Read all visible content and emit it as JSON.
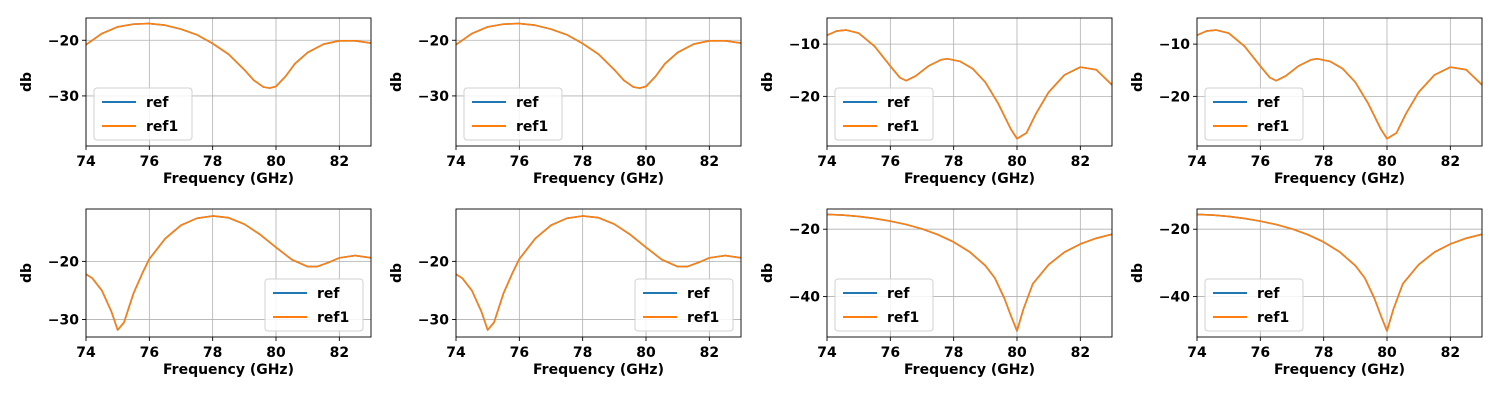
{
  "colors": {
    "ref": "#1f77b4",
    "ref1": "#ff7f0e"
  },
  "chart_data": [
    {
      "type": "line",
      "xlabel": "Frequency (GHz)",
      "ylabel": "db",
      "xlim": [
        74,
        83
      ],
      "ylim": [
        -39,
        -16
      ],
      "xticks": [
        74,
        76,
        78,
        80,
        82
      ],
      "yticks": [
        -30,
        -20
      ],
      "grid": true,
      "legend": "bottom-left",
      "x": [
        74,
        74.5,
        75,
        75.5,
        76,
        76.5,
        77,
        77.5,
        78,
        78.5,
        79,
        79.3,
        79.6,
        79.8,
        80,
        80.3,
        80.6,
        81,
        81.5,
        82,
        82.5,
        83
      ],
      "series": [
        {
          "name": "ref",
          "values": [
            -20.8,
            -18.8,
            -17.6,
            -17.1,
            -17,
            -17.3,
            -18,
            -19,
            -20.6,
            -22.5,
            -25.3,
            -27.2,
            -28.4,
            -28.6,
            -28.3,
            -26.5,
            -24.2,
            -22.2,
            -20.7,
            -20.1,
            -20.1,
            -20.5
          ]
        },
        {
          "name": "ref1",
          "values": [
            -20.8,
            -18.8,
            -17.6,
            -17.1,
            -17,
            -17.3,
            -18,
            -19,
            -20.6,
            -22.5,
            -25.3,
            -27.2,
            -28.4,
            -28.6,
            -28.3,
            -26.5,
            -24.2,
            -22.2,
            -20.7,
            -20.1,
            -20.1,
            -20.5
          ]
        }
      ]
    },
    {
      "type": "line",
      "xlabel": "Frequency (GHz)",
      "ylabel": "db",
      "xlim": [
        74,
        83
      ],
      "ylim": [
        -39,
        -16
      ],
      "xticks": [
        74,
        76,
        78,
        80,
        82
      ],
      "yticks": [
        -30,
        -20
      ],
      "grid": true,
      "legend": "bottom-left",
      "x": [
        74,
        74.5,
        75,
        75.5,
        76,
        76.5,
        77,
        77.5,
        78,
        78.5,
        79,
        79.3,
        79.6,
        79.8,
        80,
        80.3,
        80.6,
        81,
        81.5,
        82,
        82.5,
        83
      ],
      "series": [
        {
          "name": "ref",
          "values": [
            -20.8,
            -18.8,
            -17.6,
            -17.1,
            -17,
            -17.3,
            -18,
            -19,
            -20.6,
            -22.5,
            -25.3,
            -27.2,
            -28.4,
            -28.6,
            -28.3,
            -26.5,
            -24.2,
            -22.2,
            -20.7,
            -20.1,
            -20.1,
            -20.5
          ]
        },
        {
          "name": "ref1",
          "values": [
            -20.8,
            -18.8,
            -17.6,
            -17.1,
            -17,
            -17.3,
            -18,
            -19,
            -20.6,
            -22.5,
            -25.3,
            -27.2,
            -28.4,
            -28.6,
            -28.3,
            -26.5,
            -24.2,
            -22.2,
            -20.7,
            -20.1,
            -20.1,
            -20.5
          ]
        }
      ]
    },
    {
      "type": "line",
      "xlabel": "Frequency (GHz)",
      "ylabel": "db",
      "xlim": [
        74,
        83
      ],
      "ylim": [
        -29.5,
        -5
      ],
      "xticks": [
        74,
        76,
        78,
        80,
        82
      ],
      "yticks": [
        -20,
        -10
      ],
      "grid": true,
      "legend": "bottom-left",
      "x": [
        74,
        74.3,
        74.6,
        75,
        75.5,
        76,
        76.3,
        76.5,
        76.8,
        77.2,
        77.6,
        77.8,
        78.2,
        78.6,
        79,
        79.4,
        79.8,
        80,
        80.3,
        80.6,
        81,
        81.5,
        82,
        82.5,
        83
      ],
      "series": [
        {
          "name": "ref",
          "values": [
            -8.3,
            -7.5,
            -7.3,
            -7.9,
            -10.4,
            -14.2,
            -16.4,
            -17,
            -16.1,
            -14.2,
            -13,
            -12.8,
            -13.3,
            -14.7,
            -17.3,
            -21.3,
            -26.2,
            -28.1,
            -27,
            -23.3,
            -19.2,
            -15.9,
            -14.4,
            -14.9,
            -17.8
          ]
        },
        {
          "name": "ref1",
          "values": [
            -8.3,
            -7.5,
            -7.3,
            -7.9,
            -10.4,
            -14.2,
            -16.4,
            -17,
            -16.1,
            -14.2,
            -13,
            -12.8,
            -13.3,
            -14.7,
            -17.3,
            -21.3,
            -26.2,
            -28.1,
            -27,
            -23.3,
            -19.2,
            -15.9,
            -14.4,
            -14.9,
            -17.8
          ]
        }
      ]
    },
    {
      "type": "line",
      "xlabel": "Frequency (GHz)",
      "ylabel": "db",
      "xlim": [
        74,
        83
      ],
      "ylim": [
        -29.5,
        -5
      ],
      "xticks": [
        74,
        76,
        78,
        80,
        82
      ],
      "yticks": [
        -20,
        -10
      ],
      "grid": true,
      "legend": "bottom-left",
      "x": [
        74,
        74.3,
        74.6,
        75,
        75.5,
        76,
        76.3,
        76.5,
        76.8,
        77.2,
        77.6,
        77.8,
        78.2,
        78.6,
        79,
        79.4,
        79.8,
        80,
        80.3,
        80.6,
        81,
        81.5,
        82,
        82.5,
        83
      ],
      "series": [
        {
          "name": "ref",
          "values": [
            -8.3,
            -7.5,
            -7.3,
            -7.9,
            -10.4,
            -14.2,
            -16.4,
            -17,
            -16.1,
            -14.2,
            -13,
            -12.8,
            -13.3,
            -14.7,
            -17.3,
            -21.3,
            -26.2,
            -28.1,
            -27,
            -23.3,
            -19.2,
            -15.9,
            -14.4,
            -14.9,
            -17.8
          ]
        },
        {
          "name": "ref1",
          "values": [
            -8.3,
            -7.5,
            -7.3,
            -7.9,
            -10.4,
            -14.2,
            -16.4,
            -17,
            -16.1,
            -14.2,
            -13,
            -12.8,
            -13.3,
            -14.7,
            -17.3,
            -21.3,
            -26.2,
            -28.1,
            -27,
            -23.3,
            -19.2,
            -15.9,
            -14.4,
            -14.9,
            -17.8
          ]
        }
      ]
    },
    {
      "type": "line",
      "xlabel": "Frequency (GHz)",
      "ylabel": "db",
      "xlim": [
        74,
        83
      ],
      "ylim": [
        -33,
        -11
      ],
      "xticks": [
        74,
        76,
        78,
        80,
        82
      ],
      "yticks": [
        -30,
        -20
      ],
      "grid": true,
      "legend": "bottom-right",
      "x": [
        74,
        74.2,
        74.5,
        74.8,
        75,
        75.2,
        75.5,
        75.8,
        76,
        76.5,
        77,
        77.5,
        78,
        78.5,
        79,
        79.5,
        80,
        80.5,
        81,
        81.3,
        81.7,
        82,
        82.5,
        83
      ],
      "series": [
        {
          "name": "ref",
          "values": [
            -22.2,
            -22.9,
            -25,
            -28.6,
            -31.8,
            -30.5,
            -25.5,
            -21.8,
            -19.6,
            -16.1,
            -13.8,
            -12.6,
            -12.2,
            -12.5,
            -13.6,
            -15.4,
            -17.6,
            -19.7,
            -20.9,
            -20.9,
            -20.1,
            -19.4,
            -19.0,
            -19.4
          ]
        },
        {
          "name": "ref1",
          "values": [
            -22.2,
            -22.9,
            -25,
            -28.6,
            -31.8,
            -30.5,
            -25.5,
            -21.8,
            -19.6,
            -16.1,
            -13.8,
            -12.6,
            -12.2,
            -12.5,
            -13.6,
            -15.4,
            -17.6,
            -19.7,
            -20.9,
            -20.9,
            -20.1,
            -19.4,
            -19.0,
            -19.4
          ]
        }
      ]
    },
    {
      "type": "line",
      "xlabel": "Frequency (GHz)",
      "ylabel": "db",
      "xlim": [
        74,
        83
      ],
      "ylim": [
        -33,
        -11
      ],
      "xticks": [
        74,
        76,
        78,
        80,
        82
      ],
      "yticks": [
        -30,
        -20
      ],
      "grid": true,
      "legend": "bottom-right",
      "x": [
        74,
        74.2,
        74.5,
        74.8,
        75,
        75.2,
        75.5,
        75.8,
        76,
        76.5,
        77,
        77.5,
        78,
        78.5,
        79,
        79.5,
        80,
        80.5,
        81,
        81.3,
        81.7,
        82,
        82.5,
        83
      ],
      "series": [
        {
          "name": "ref",
          "values": [
            -22.2,
            -22.9,
            -25,
            -28.6,
            -31.8,
            -30.5,
            -25.5,
            -21.8,
            -19.6,
            -16.1,
            -13.8,
            -12.6,
            -12.2,
            -12.5,
            -13.6,
            -15.4,
            -17.6,
            -19.7,
            -20.9,
            -20.9,
            -20.1,
            -19.4,
            -19.0,
            -19.4
          ]
        },
        {
          "name": "ref1",
          "values": [
            -22.2,
            -22.9,
            -25,
            -28.6,
            -31.8,
            -30.5,
            -25.5,
            -21.8,
            -19.6,
            -16.1,
            -13.8,
            -12.6,
            -12.2,
            -12.5,
            -13.6,
            -15.4,
            -17.6,
            -19.7,
            -20.9,
            -20.9,
            -20.1,
            -19.4,
            -19.0,
            -19.4
          ]
        }
      ]
    },
    {
      "type": "line",
      "xlabel": "Frequency (GHz)",
      "ylabel": "db",
      "xlim": [
        74,
        83
      ],
      "ylim": [
        -52,
        -14
      ],
      "xticks": [
        74,
        76,
        78,
        80,
        82
      ],
      "yticks": [
        -40,
        -20
      ],
      "grid": true,
      "legend": "bottom-left",
      "x": [
        74,
        74.5,
        75,
        75.5,
        76,
        76.5,
        77,
        77.5,
        78,
        78.5,
        79,
        79.3,
        79.6,
        79.8,
        80,
        80.2,
        80.5,
        81,
        81.5,
        82,
        82.5,
        83
      ],
      "series": [
        {
          "name": "ref",
          "values": [
            -15.6,
            -15.8,
            -16.2,
            -16.8,
            -17.6,
            -18.6,
            -19.9,
            -21.6,
            -23.8,
            -26.7,
            -30.8,
            -34.5,
            -40.5,
            -45.5,
            -50.2,
            -43.8,
            -36.2,
            -30.5,
            -26.8,
            -24.4,
            -22.7,
            -21.5
          ]
        },
        {
          "name": "ref1",
          "values": [
            -15.6,
            -15.8,
            -16.2,
            -16.8,
            -17.6,
            -18.6,
            -19.9,
            -21.6,
            -23.8,
            -26.7,
            -30.8,
            -34.5,
            -40.5,
            -45.5,
            -50.2,
            -43.8,
            -36.2,
            -30.5,
            -26.8,
            -24.4,
            -22.7,
            -21.5
          ]
        }
      ]
    },
    {
      "type": "line",
      "xlabel": "Frequency (GHz)",
      "ylabel": "db",
      "xlim": [
        74,
        83
      ],
      "ylim": [
        -52,
        -14
      ],
      "xticks": [
        74,
        76,
        78,
        80,
        82
      ],
      "yticks": [
        -40,
        -20
      ],
      "grid": true,
      "legend": "bottom-left",
      "x": [
        74,
        74.5,
        75,
        75.5,
        76,
        76.5,
        77,
        77.5,
        78,
        78.5,
        79,
        79.3,
        79.6,
        79.8,
        80,
        80.2,
        80.5,
        81,
        81.5,
        82,
        82.5,
        83
      ],
      "series": [
        {
          "name": "ref",
          "values": [
            -15.6,
            -15.8,
            -16.2,
            -16.8,
            -17.6,
            -18.6,
            -19.9,
            -21.6,
            -23.8,
            -26.7,
            -30.8,
            -34.5,
            -40.5,
            -45.5,
            -50.2,
            -43.8,
            -36.2,
            -30.5,
            -26.8,
            -24.4,
            -22.7,
            -21.5
          ]
        },
        {
          "name": "ref1",
          "values": [
            -15.6,
            -15.8,
            -16.2,
            -16.8,
            -17.6,
            -18.6,
            -19.9,
            -21.6,
            -23.8,
            -26.7,
            -30.8,
            -34.5,
            -40.5,
            -45.5,
            -50.2,
            -43.8,
            -36.2,
            -30.5,
            -26.8,
            -24.4,
            -22.7,
            -21.5
          ]
        }
      ]
    }
  ]
}
